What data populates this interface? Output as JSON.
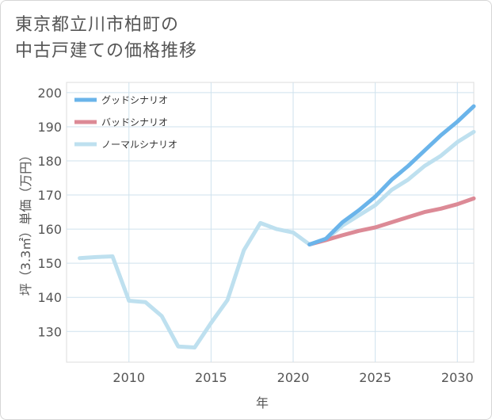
{
  "title_lines": [
    "東京都立川市柏町の",
    "中古戸建ての価格推移"
  ],
  "chart_data": {
    "type": "line",
    "xlabel": "年",
    "ylabel": "坪（3.3㎡）単価（万円）",
    "xlim": [
      2006.2,
      2031
    ],
    "ylim": [
      121,
      203
    ],
    "xticks": [
      2010,
      2015,
      2020,
      2025,
      2030
    ],
    "yticks": [
      130,
      140,
      150,
      160,
      170,
      180,
      190,
      200
    ],
    "grid": true,
    "legend_position": "top-left",
    "series": [
      {
        "name": "グッドシナリオ",
        "color": "#6ab4ea",
        "x": [
          2021,
          2022,
          2023,
          2024,
          2025,
          2026,
          2027,
          2028,
          2029,
          2030,
          2031
        ],
        "y": [
          155.5,
          157.2,
          162,
          165.5,
          169.5,
          174.5,
          178.5,
          183,
          187.5,
          191.5,
          196
        ]
      },
      {
        "name": "バッドシナリオ",
        "color": "#dc8a96",
        "x": [
          2021,
          2022,
          2023,
          2024,
          2025,
          2026,
          2027,
          2028,
          2029,
          2030,
          2031
        ],
        "y": [
          155.5,
          156.8,
          158.2,
          159.5,
          160.5,
          162,
          163.5,
          165,
          166,
          167.3,
          169
        ]
      },
      {
        "name": "ノーマルシナリオ",
        "color": "#bee0ef",
        "x": [
          2007,
          2008,
          2009,
          2010,
          2011,
          2012,
          2013,
          2014,
          2015,
          2016,
          2017,
          2018,
          2019,
          2020,
          2021,
          2022,
          2023,
          2024,
          2025,
          2026,
          2027,
          2028,
          2029,
          2030,
          2031
        ],
        "y": [
          151.5,
          151.8,
          152,
          139,
          138.6,
          134.5,
          125.6,
          125.3,
          132.5,
          139.2,
          153.8,
          161.8,
          160,
          159,
          155.5,
          157,
          161,
          164,
          167,
          171.5,
          174.5,
          178.5,
          181.5,
          185.5,
          188.5
        ]
      }
    ]
  }
}
